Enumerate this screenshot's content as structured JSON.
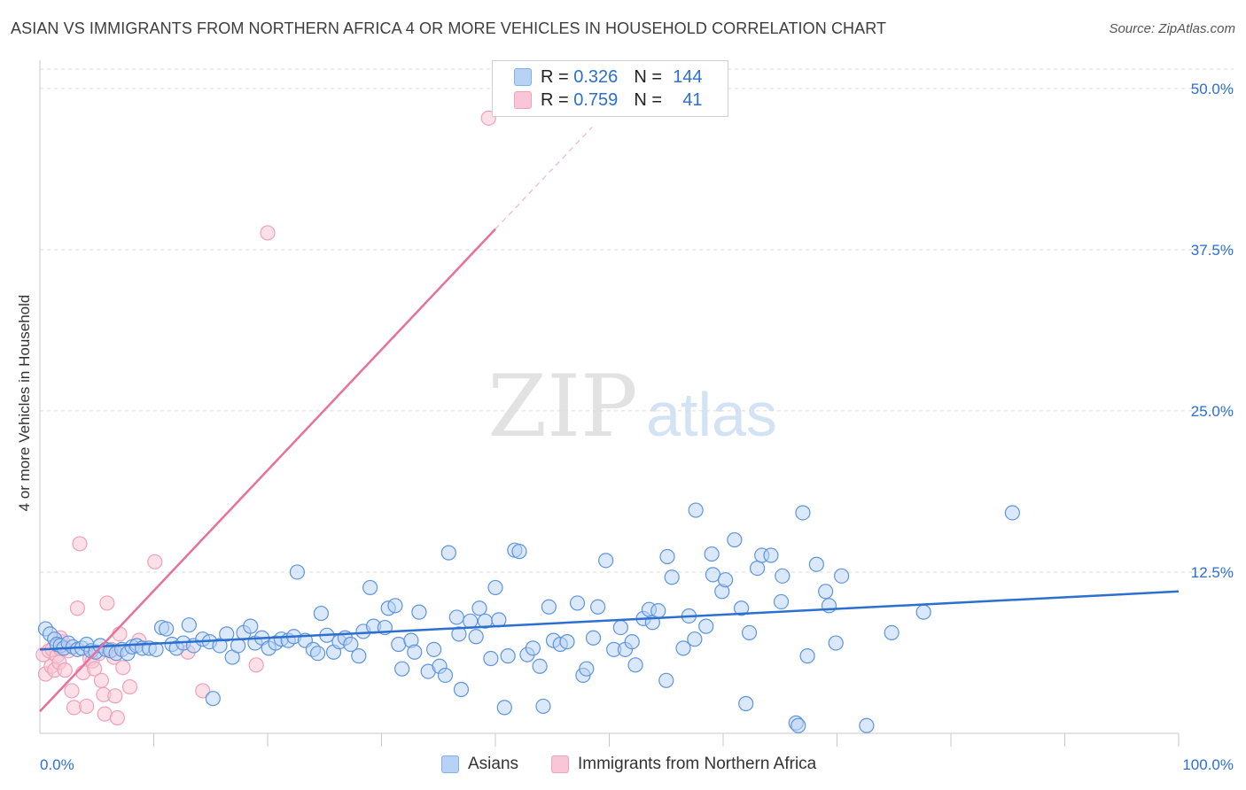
{
  "title": "ASIAN VS IMMIGRANTS FROM NORTHERN AFRICA 4 OR MORE VEHICLES IN HOUSEHOLD CORRELATION CHART",
  "source": "Source: ZipAtlas.com",
  "watermark": {
    "zip": "ZIP",
    "atlas": "atlas"
  },
  "legend_stats": [
    {
      "r_label": "R =",
      "r_value": "0.326",
      "n_label": "N =",
      "n_value": "144",
      "color": "#7fb0ea"
    },
    {
      "r_label": "R =",
      "r_value": "0.759",
      "n_label": "N =",
      "n_value": "41",
      "color": "#f2a0bb"
    }
  ],
  "bottom_legend": [
    {
      "label": "Asians",
      "color": "#7fb0ea"
    },
    {
      "label": "Immigrants from Northern Africa",
      "color": "#f2a0bb"
    }
  ],
  "chart_data": {
    "type": "scatter",
    "title": "ASIAN VS IMMIGRANTS FROM NORTHERN AFRICA 4 OR MORE VEHICLES IN HOUSEHOLD CORRELATION CHART",
    "xlabel": "",
    "ylabel": "4 or more Vehicles in Household",
    "xlim": [
      0,
      100
    ],
    "ylim": [
      0,
      51.5
    ],
    "x_tick_labels": [
      "0.0%",
      "100.0%"
    ],
    "y_ticks": [
      12.5,
      25.0,
      37.5,
      50.0
    ],
    "y_tick_labels": [
      "12.5%",
      "25.0%",
      "37.5%",
      "50.0%"
    ],
    "grid": "horizontal dashed",
    "legend_position": "top-center",
    "colors": {
      "asians": "#2b6fd1",
      "asians_fill": "#b7d2f4",
      "africa": "#e8709a",
      "africa_fill": "#f8c6d6",
      "ticklabel": "#2b6fd1"
    },
    "series": [
      {
        "name": "Asians",
        "trend": {
          "x": [
            0,
            100
          ],
          "y": [
            6.5,
            11.0
          ],
          "extrapolated": false
        },
        "points": [
          [
            0.5,
            8.1
          ],
          [
            0.9,
            7.7
          ],
          [
            1.3,
            7.3
          ],
          [
            1.5,
            6.9
          ],
          [
            1.8,
            6.8
          ],
          [
            2.1,
            6.6
          ],
          [
            2.5,
            7.0
          ],
          [
            2.9,
            6.7
          ],
          [
            3.3,
            6.5
          ],
          [
            3.7,
            6.6
          ],
          [
            4.1,
            6.9
          ],
          [
            4.5,
            6.4
          ],
          [
            4.9,
            6.3
          ],
          [
            5.3,
            6.8
          ],
          [
            5.8,
            6.5
          ],
          [
            6.2,
            6.4
          ],
          [
            6.7,
            6.2
          ],
          [
            7.2,
            6.5
          ],
          [
            7.7,
            6.2
          ],
          [
            8.1,
            6.7
          ],
          [
            8.5,
            6.8
          ],
          [
            9.0,
            6.6
          ],
          [
            9.6,
            6.6
          ],
          [
            10.2,
            6.5
          ],
          [
            10.7,
            8.2
          ],
          [
            11.1,
            8.1
          ],
          [
            11.6,
            6.9
          ],
          [
            12.0,
            6.6
          ],
          [
            12.6,
            7.0
          ],
          [
            13.1,
            8.4
          ],
          [
            13.5,
            6.8
          ],
          [
            14.3,
            7.3
          ],
          [
            14.9,
            7.1
          ],
          [
            15.2,
            2.7
          ],
          [
            15.8,
            6.8
          ],
          [
            16.4,
            7.7
          ],
          [
            16.9,
            5.9
          ],
          [
            17.4,
            6.8
          ],
          [
            17.9,
            7.8
          ],
          [
            18.5,
            8.3
          ],
          [
            18.9,
            7.0
          ],
          [
            19.5,
            7.4
          ],
          [
            20.1,
            6.6
          ],
          [
            20.7,
            7.0
          ],
          [
            21.2,
            7.3
          ],
          [
            21.8,
            7.2
          ],
          [
            22.3,
            7.5
          ],
          [
            22.6,
            12.5
          ],
          [
            23.3,
            7.2
          ],
          [
            24.0,
            6.5
          ],
          [
            24.4,
            6.2
          ],
          [
            24.7,
            9.3
          ],
          [
            25.2,
            7.6
          ],
          [
            25.8,
            6.3
          ],
          [
            26.3,
            7.1
          ],
          [
            26.8,
            7.4
          ],
          [
            27.3,
            6.9
          ],
          [
            28.0,
            6.0
          ],
          [
            28.4,
            7.9
          ],
          [
            29.0,
            11.3
          ],
          [
            29.3,
            8.3
          ],
          [
            30.3,
            8.2
          ],
          [
            30.6,
            9.7
          ],
          [
            31.2,
            9.9
          ],
          [
            31.5,
            6.9
          ],
          [
            31.8,
            5.0
          ],
          [
            32.6,
            7.2
          ],
          [
            32.9,
            6.3
          ],
          [
            33.3,
            9.4
          ],
          [
            34.1,
            4.8
          ],
          [
            34.6,
            6.5
          ],
          [
            35.1,
            5.2
          ],
          [
            35.6,
            4.5
          ],
          [
            35.9,
            14.0
          ],
          [
            36.6,
            9.0
          ],
          [
            36.8,
            7.7
          ],
          [
            37.0,
            3.4
          ],
          [
            37.8,
            8.7
          ],
          [
            38.3,
            7.5
          ],
          [
            38.6,
            9.7
          ],
          [
            39.1,
            8.7
          ],
          [
            39.6,
            5.8
          ],
          [
            40.0,
            11.3
          ],
          [
            40.3,
            8.8
          ],
          [
            40.8,
            2.0
          ],
          [
            41.1,
            6.0
          ],
          [
            41.7,
            14.2
          ],
          [
            42.1,
            14.1
          ],
          [
            42.8,
            6.1
          ],
          [
            43.3,
            6.6
          ],
          [
            43.9,
            5.2
          ],
          [
            44.2,
            2.1
          ],
          [
            44.7,
            9.8
          ],
          [
            45.1,
            7.2
          ],
          [
            45.7,
            6.9
          ],
          [
            46.3,
            7.1
          ],
          [
            47.2,
            10.1
          ],
          [
            47.7,
            4.5
          ],
          [
            48.0,
            5.0
          ],
          [
            48.6,
            7.4
          ],
          [
            49.0,
            9.8
          ],
          [
            49.7,
            13.4
          ],
          [
            50.4,
            6.5
          ],
          [
            51.0,
            8.2
          ],
          [
            51.4,
            6.5
          ],
          [
            52.0,
            7.1
          ],
          [
            52.3,
            5.3
          ],
          [
            53.0,
            8.9
          ],
          [
            53.5,
            9.6
          ],
          [
            53.8,
            8.6
          ],
          [
            54.3,
            9.5
          ],
          [
            55.0,
            4.1
          ],
          [
            55.1,
            13.7
          ],
          [
            55.5,
            12.1
          ],
          [
            56.5,
            6.6
          ],
          [
            57.0,
            9.1
          ],
          [
            57.5,
            7.3
          ],
          [
            57.6,
            17.3
          ],
          [
            58.5,
            8.3
          ],
          [
            59.0,
            13.9
          ],
          [
            59.1,
            12.3
          ],
          [
            59.9,
            11.0
          ],
          [
            60.2,
            11.9
          ],
          [
            61.0,
            15.0
          ],
          [
            61.6,
            9.7
          ],
          [
            62.0,
            2.3
          ],
          [
            62.3,
            7.8
          ],
          [
            63.0,
            12.8
          ],
          [
            63.4,
            13.8
          ],
          [
            64.2,
            13.8
          ],
          [
            65.1,
            10.2
          ],
          [
            65.2,
            12.2
          ],
          [
            66.4,
            0.8
          ],
          [
            66.6,
            0.6
          ],
          [
            67.0,
            17.1
          ],
          [
            67.4,
            6.0
          ],
          [
            68.2,
            13.1
          ],
          [
            69.0,
            11.0
          ],
          [
            69.3,
            9.9
          ],
          [
            69.9,
            7.0
          ],
          [
            70.4,
            12.2
          ],
          [
            72.6,
            0.6
          ],
          [
            74.8,
            7.8
          ],
          [
            77.6,
            9.4
          ],
          [
            85.4,
            17.1
          ]
        ]
      },
      {
        "name": "Immigrants from Northern Africa",
        "trend": {
          "x": [
            0,
            40
          ],
          "y": [
            1.7,
            39.1
          ],
          "extrapolated_to": [
            48.5,
            47.0
          ]
        },
        "points": [
          [
            0.3,
            6.1
          ],
          [
            0.5,
            4.6
          ],
          [
            0.8,
            6.4
          ],
          [
            1.0,
            5.2
          ],
          [
            1.1,
            6.5
          ],
          [
            1.3,
            4.9
          ],
          [
            1.5,
            6.0
          ],
          [
            1.7,
            5.5
          ],
          [
            1.8,
            6.6
          ],
          [
            2.0,
            7.1
          ],
          [
            2.2,
            4.9
          ],
          [
            2.5,
            6.4
          ],
          [
            2.8,
            3.3
          ],
          [
            3.0,
            2.0
          ],
          [
            3.3,
            9.7
          ],
          [
            3.5,
            14.7
          ],
          [
            3.8,
            4.7
          ],
          [
            4.1,
            2.1
          ],
          [
            4.4,
            5.8
          ],
          [
            4.6,
            5.6
          ],
          [
            4.8,
            5.0
          ],
          [
            5.2,
            6.2
          ],
          [
            5.4,
            4.1
          ],
          [
            5.6,
            3.0
          ],
          [
            5.7,
            1.5
          ],
          [
            5.9,
            10.1
          ],
          [
            6.3,
            6.5
          ],
          [
            6.5,
            5.9
          ],
          [
            6.6,
            2.9
          ],
          [
            6.8,
            1.2
          ],
          [
            7.0,
            7.7
          ],
          [
            7.3,
            5.1
          ],
          [
            7.9,
            3.6
          ],
          [
            8.7,
            7.2
          ],
          [
            10.1,
            13.3
          ],
          [
            13.0,
            6.3
          ],
          [
            14.3,
            3.3
          ],
          [
            19.0,
            5.3
          ],
          [
            20.0,
            38.8
          ],
          [
            39.4,
            47.7
          ],
          [
            1.8,
            7.4
          ]
        ]
      }
    ]
  }
}
